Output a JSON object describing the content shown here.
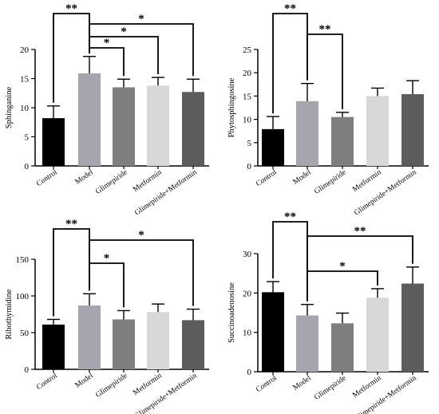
{
  "chart_data": [
    {
      "type": "bar",
      "ylabel": "Sphinganine",
      "categories": [
        "Control",
        "Model",
        "Glimepiride",
        "Metformin",
        "Glimepiride+Metformin"
      ],
      "values": [
        8.2,
        15.9,
        13.5,
        13.8,
        12.7
      ],
      "errors": [
        2.1,
        2.9,
        1.4,
        1.4,
        2.2
      ],
      "colors": [
        "#000000",
        "#a5a5ad",
        "#7e7e7e",
        "#d8d8d8",
        "#5c5c5c"
      ],
      "ylim": [
        0,
        20
      ],
      "yticks": [
        "0",
        "5",
        "10",
        "15",
        "20"
      ],
      "significance": [
        {
          "from": "Control",
          "to": "Model",
          "label": "**"
        },
        {
          "from": "Model",
          "to": "Glimepiride+Metformin",
          "label": "*"
        },
        {
          "from": "Model",
          "to": "Metformin",
          "label": "*"
        },
        {
          "from": "Model",
          "to": "Glimepiride",
          "label": "*"
        }
      ]
    },
    {
      "type": "bar",
      "ylabel": "Phytosphingosine",
      "categories": [
        "Control",
        "Model",
        "Glimepiride",
        "Metformin",
        "Glimepiride+Metformin"
      ],
      "values": [
        7.9,
        13.9,
        10.5,
        15.0,
        15.4
      ],
      "errors": [
        2.7,
        3.8,
        1.0,
        1.7,
        2.9
      ],
      "colors": [
        "#000000",
        "#a5a5ad",
        "#7e7e7e",
        "#d8d8d8",
        "#5c5c5c"
      ],
      "ylim": [
        0,
        25
      ],
      "yticks": [
        "0",
        "5",
        "10",
        "15",
        "20",
        "25"
      ],
      "significance": [
        {
          "from": "Control",
          "to": "Model",
          "label": "**"
        },
        {
          "from": "Model",
          "to": "Glimepiride",
          "label": "**"
        }
      ]
    },
    {
      "type": "bar",
      "ylabel": "Ribothymidine",
      "categories": [
        "Control",
        "Model",
        "Glimepiride",
        "Metformin",
        "Glimepiride+Metformin"
      ],
      "values": [
        61,
        87,
        68,
        78,
        67
      ],
      "errors": [
        7,
        16,
        12,
        11,
        15
      ],
      "colors": [
        "#000000",
        "#a5a5ad",
        "#7e7e7e",
        "#d8d8d8",
        "#5c5c5c"
      ],
      "ylim": [
        0,
        150
      ],
      "yticks": [
        "0",
        "50",
        "100",
        "150"
      ],
      "significance": [
        {
          "from": "Control",
          "to": "Model",
          "label": "**"
        },
        {
          "from": "Model",
          "to": "Glimepiride+Metformin",
          "label": "*"
        },
        {
          "from": "Model",
          "to": "Glimepiride",
          "label": "*"
        }
      ]
    },
    {
      "type": "bar",
      "ylabel": "Succinoadenosine",
      "categories": [
        "Control",
        "Model",
        "Glimepiride",
        "Metformin",
        "Glimepiride+Metformin"
      ],
      "values": [
        20.2,
        14.3,
        12.3,
        18.8,
        22.4
      ],
      "errors": [
        2.7,
        2.8,
        2.6,
        2.3,
        4.2
      ],
      "colors": [
        "#000000",
        "#a5a5ad",
        "#7e7e7e",
        "#d8d8d8",
        "#5c5c5c"
      ],
      "ylim": [
        0,
        30
      ],
      "yticks": [
        "0",
        "10",
        "20",
        "30"
      ],
      "significance": [
        {
          "from": "Control",
          "to": "Model",
          "label": "**"
        },
        {
          "from": "Model",
          "to": "Glimepiride+Metformin",
          "label": "**"
        },
        {
          "from": "Model",
          "to": "Metformin",
          "label": "*"
        }
      ]
    }
  ]
}
